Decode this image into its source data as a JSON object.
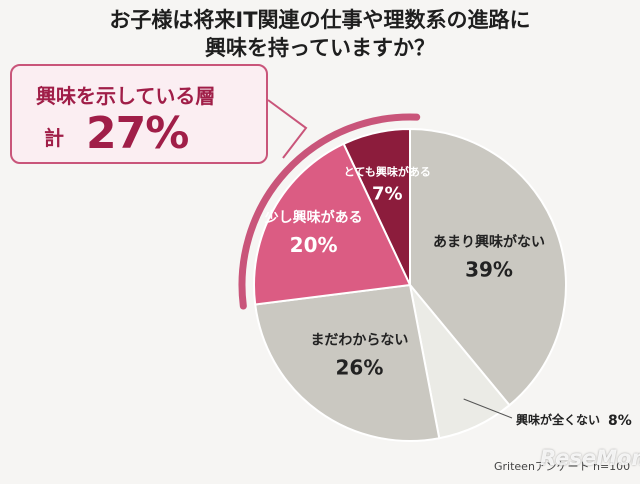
{
  "title_line1": "お子様は将来IT関連の仕事や理数系の進路に",
  "title_line2": "興味を持っていますか？",
  "callout": {
    "label": "興味を示している層",
    "prefix": "計",
    "value": "27%"
  },
  "source": "Griteenアンケート n=100",
  "watermark": "ReseMom",
  "colors": {
    "very_interested": "#8c1c3c",
    "somewhat_interested": "#db5c83",
    "not_very": "#cac8c1",
    "not_at_all": "#ebebe6",
    "undecided": "#cac8c1",
    "accent": "#c9557a"
  },
  "chart_data": {
    "type": "pie",
    "title": "お子様は将来IT関連の仕事や理数系の進路に興味を持っていますか？",
    "slices": [
      {
        "label": "とても興味がある",
        "value": 7,
        "display": "7%"
      },
      {
        "label": "あまり興味がない",
        "value": 39,
        "display": "39%"
      },
      {
        "label": "興味が全くない",
        "value": 8,
        "display": "8%"
      },
      {
        "label": "まだわからない",
        "value": 26,
        "display": "26%"
      },
      {
        "label": "少し興味がある",
        "value": 20,
        "display": "20%"
      }
    ],
    "highlight": {
      "slices": [
        "少し興味がある",
        "とても興味がある"
      ],
      "total": "27%"
    }
  }
}
